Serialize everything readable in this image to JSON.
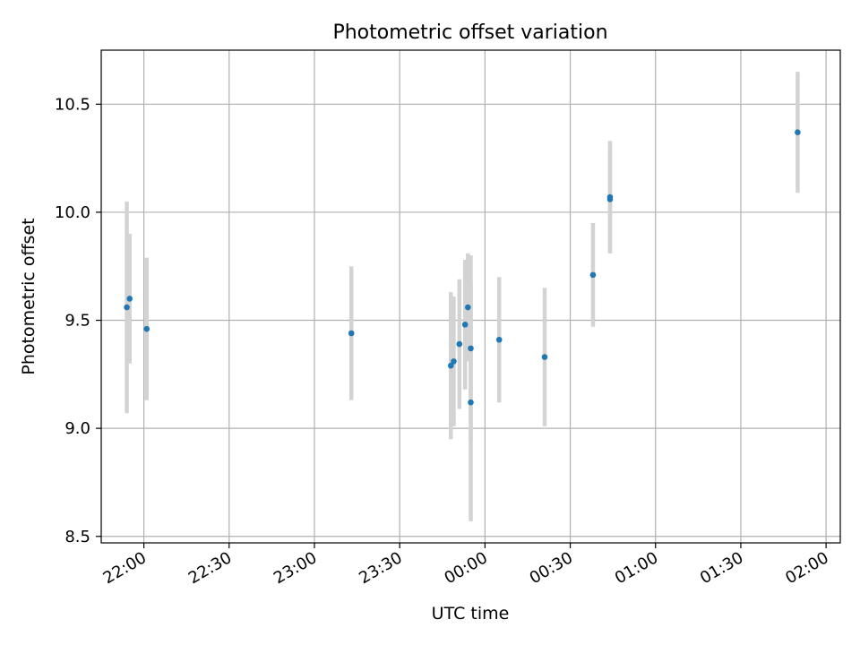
{
  "chart_data": {
    "type": "scatter",
    "title": "Photometric offset variation",
    "xlabel": "UTC time",
    "ylabel": "Photometric offset",
    "x_axis": {
      "kind": "time",
      "range": [
        "21:45",
        "02:05"
      ],
      "ticks": [
        "22:00",
        "22:30",
        "23:00",
        "23:30",
        "00:00",
        "00:30",
        "01:00",
        "01:30",
        "02:00"
      ],
      "tick_label_rotation": "30° (right-aligned)"
    },
    "y_axis": {
      "range": [
        8.47,
        10.75
      ],
      "ticks": [
        "8.5",
        "9.0",
        "9.5",
        "10.0",
        "10.5"
      ]
    },
    "grid": true,
    "legend": "none",
    "colors": {
      "points": "#1f77b4",
      "error_bars": "#d3d3d3",
      "grid": "#b0b0b0"
    },
    "series": [
      {
        "points": [
          {
            "x": "21:54",
            "y": 9.56,
            "err": 0.49
          },
          {
            "x": "21:55",
            "y": 9.6,
            "err": 0.3
          },
          {
            "x": "22:01",
            "y": 9.46,
            "err": 0.33
          },
          {
            "x": "23:13",
            "y": 9.44,
            "err": 0.31
          },
          {
            "x": "23:48",
            "y": 9.29,
            "err": 0.34
          },
          {
            "x": "23:49",
            "y": 9.31,
            "err": 0.3
          },
          {
            "x": "23:51",
            "y": 9.39,
            "err": 0.3
          },
          {
            "x": "23:53",
            "y": 9.48,
            "err": 0.3
          },
          {
            "x": "23:54",
            "y": 9.56,
            "err": 0.25
          },
          {
            "x": "23:55",
            "y": 9.37,
            "err": 0.43
          },
          {
            "x": "23:55",
            "y": 9.12,
            "err": 0.55
          },
          {
            "x": "00:05",
            "y": 9.41,
            "err": 0.29
          },
          {
            "x": "00:21",
            "y": 9.33,
            "err": 0.32
          },
          {
            "x": "00:38",
            "y": 9.71,
            "err": 0.24
          },
          {
            "x": "00:44",
            "y": 10.07,
            "err": 0.26
          },
          {
            "x": "00:44",
            "y": 10.06,
            "err": 0.25
          },
          {
            "x": "01:50",
            "y": 10.37,
            "err": 0.28
          }
        ]
      }
    ]
  }
}
